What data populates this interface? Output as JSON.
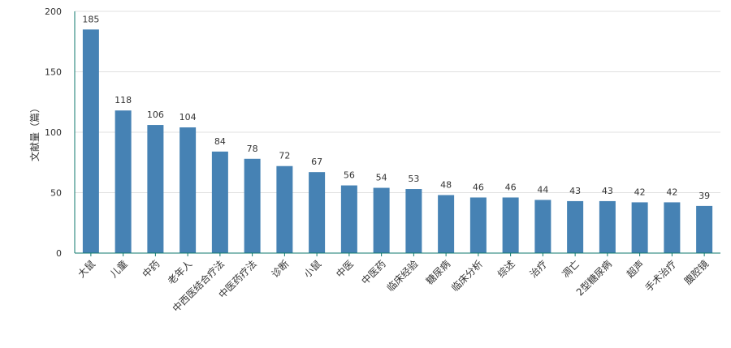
{
  "chart_data": {
    "type": "bar",
    "title": "",
    "xlabel": "",
    "ylabel": "文献量（篇）",
    "ylim": [
      0,
      200
    ],
    "yticks": [
      0,
      50,
      100,
      150,
      200
    ],
    "grid": true,
    "bar_color": "#4682b4",
    "axis_color": "#0f7a6e",
    "grid_color": "#e0e0e0",
    "categories": [
      "大鼠",
      "儿童",
      "中药",
      "老年人",
      "中西医结合疗法",
      "中医药疗法",
      "诊断",
      "小鼠",
      "中医",
      "中医药",
      "临床经验",
      "糖尿病",
      "临床分析",
      "综述",
      "治疗",
      "凋亡",
      "2型糖尿病",
      "超声",
      "手术治疗",
      "腹腔镜"
    ],
    "values": [
      185,
      118,
      106,
      104,
      84,
      78,
      72,
      67,
      56,
      54,
      53,
      48,
      46,
      46,
      44,
      43,
      43,
      42,
      42,
      39
    ]
  }
}
